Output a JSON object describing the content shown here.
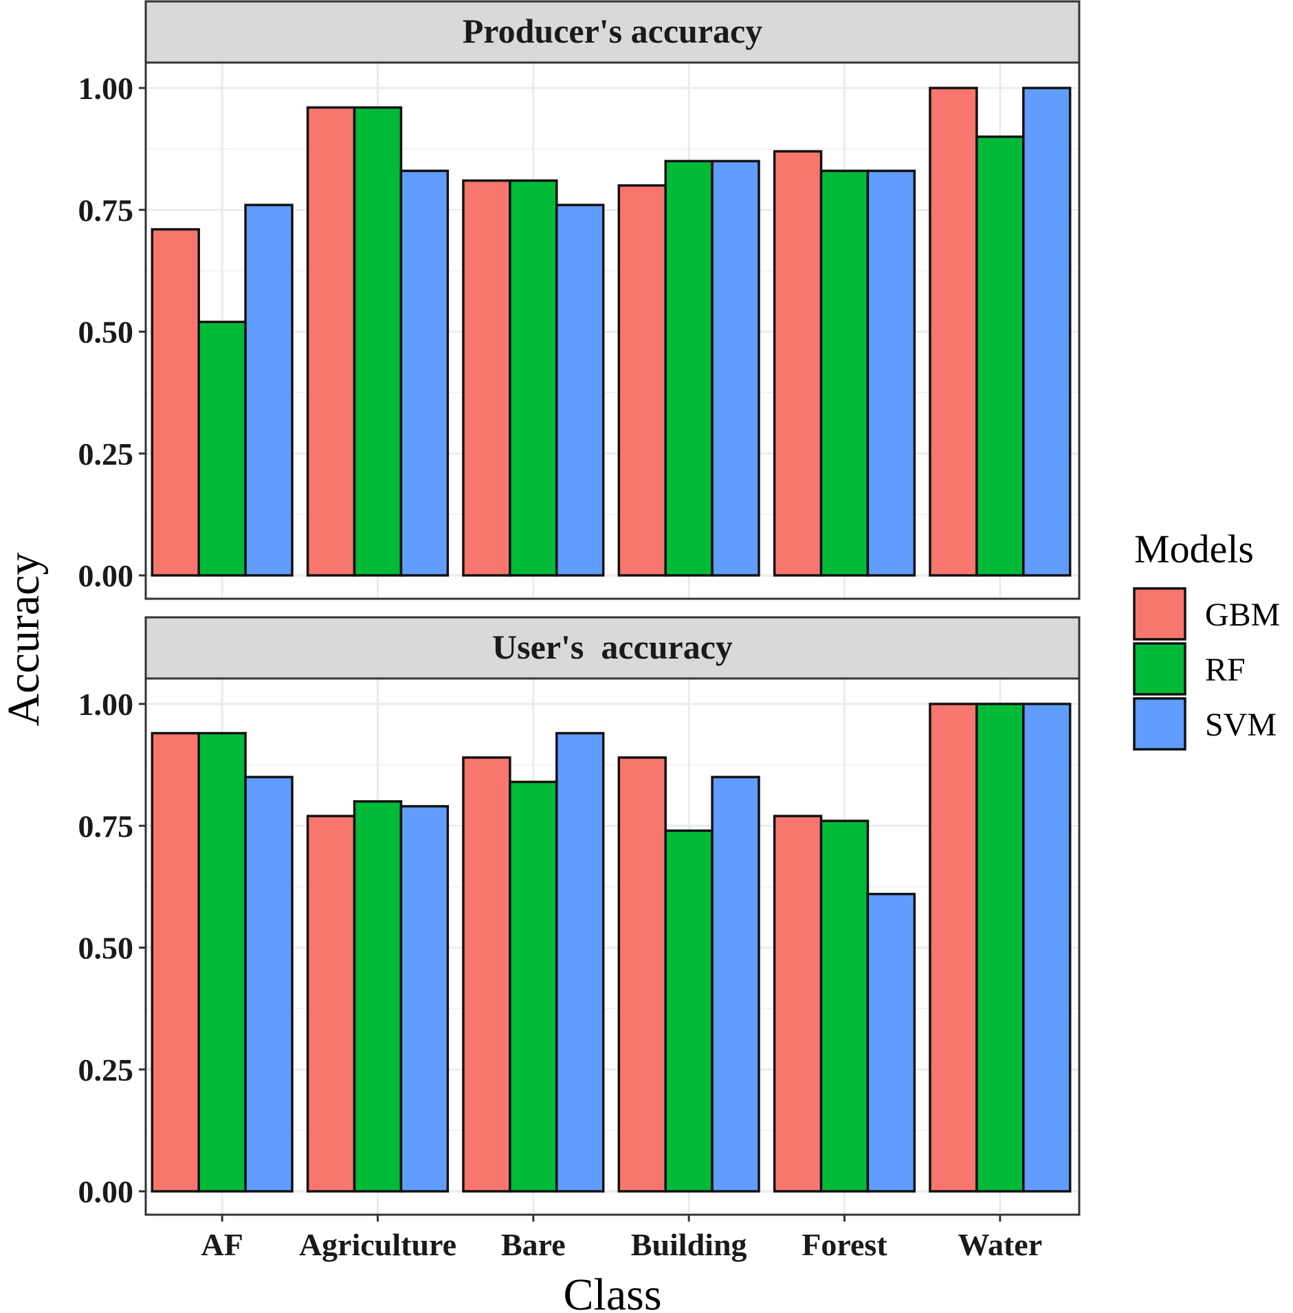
{
  "chart_data": {
    "type": "bar",
    "xlabel": "Class",
    "ylabel": "Accuracy",
    "ylim": [
      0,
      1.05
    ],
    "yticks": [
      "0.00",
      "0.25",
      "0.50",
      "0.75",
      "1.00"
    ],
    "ytick_values": [
      0,
      0.25,
      0.5,
      0.75,
      1.0
    ],
    "categories": [
      "AF",
      "Agriculture",
      "Bare",
      "Building",
      "Forest",
      "Water"
    ],
    "legend": {
      "title": "Models",
      "position": "right",
      "items": [
        {
          "name": "GBM",
          "color": "#F8766D"
        },
        {
          "name": "RF",
          "color": "#00BA38"
        },
        {
          "name": "SVM",
          "color": "#619CFF"
        }
      ]
    },
    "grid": true,
    "panels": [
      {
        "title": "Producer's accuracy",
        "series": [
          {
            "name": "GBM",
            "values": [
              0.71,
              0.96,
              0.81,
              0.8,
              0.87,
              1.0
            ]
          },
          {
            "name": "RF",
            "values": [
              0.52,
              0.96,
              0.81,
              0.85,
              0.83,
              0.9
            ]
          },
          {
            "name": "SVM",
            "values": [
              0.76,
              0.83,
              0.76,
              0.85,
              0.83,
              1.0
            ]
          }
        ]
      },
      {
        "title": "User's  accuracy",
        "series": [
          {
            "name": "GBM",
            "values": [
              0.94,
              0.77,
              0.89,
              0.89,
              0.77,
              1.0
            ]
          },
          {
            "name": "RF",
            "values": [
              0.94,
              0.8,
              0.84,
              0.74,
              0.76,
              1.0
            ]
          },
          {
            "name": "SVM",
            "values": [
              0.85,
              0.79,
              0.94,
              0.85,
              0.61,
              1.0
            ]
          }
        ]
      }
    ]
  }
}
